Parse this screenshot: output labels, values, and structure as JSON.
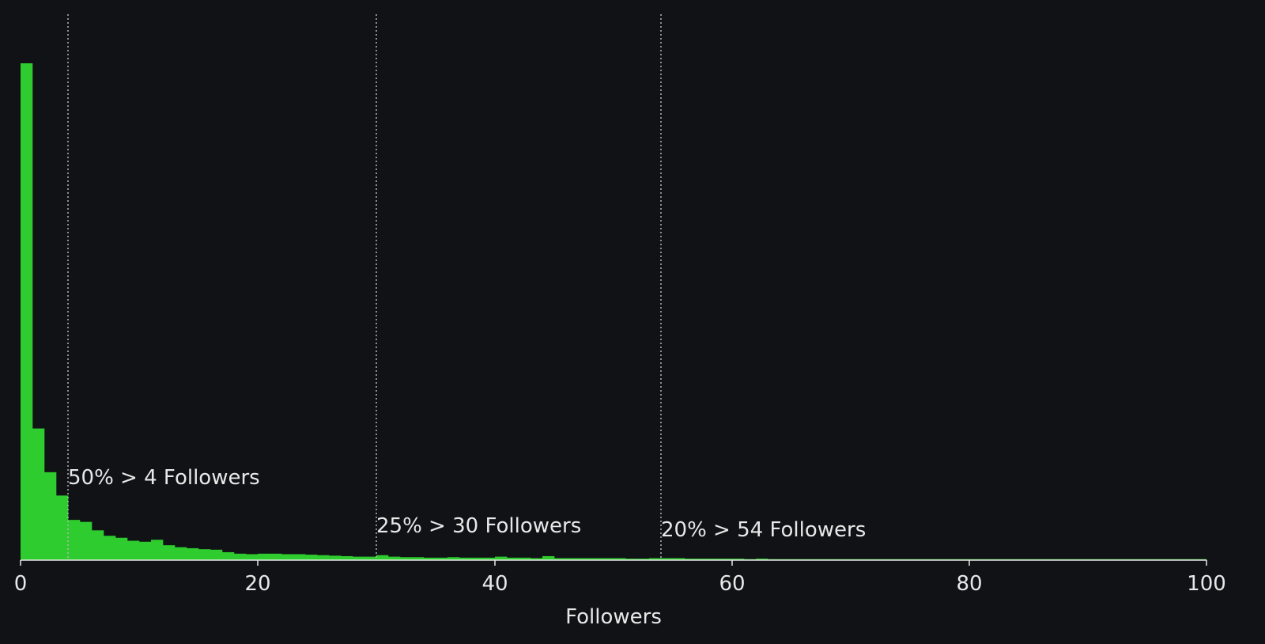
{
  "chart_data": {
    "type": "histogram",
    "xlabel": "Followers",
    "ylabel": "",
    "xlim": [
      0,
      100
    ],
    "ylim": [
      0,
      1.0
    ],
    "bar_color": "#2ecc2e",
    "background": "#111215",
    "grid": false,
    "bin_width": 1,
    "x_ticks": [
      0,
      20,
      40,
      60,
      80,
      100
    ],
    "x_tick_labels": [
      "0",
      "20",
      "40",
      "60",
      "80",
      "100"
    ],
    "values": [
      1.0,
      0.265,
      0.177,
      0.13,
      0.081,
      0.077,
      0.06,
      0.049,
      0.045,
      0.039,
      0.037,
      0.041,
      0.03,
      0.026,
      0.024,
      0.022,
      0.021,
      0.016,
      0.013,
      0.012,
      0.013,
      0.013,
      0.012,
      0.012,
      0.011,
      0.01,
      0.009,
      0.008,
      0.007,
      0.007,
      0.01,
      0.007,
      0.006,
      0.006,
      0.005,
      0.005,
      0.006,
      0.005,
      0.005,
      0.005,
      0.007,
      0.005,
      0.005,
      0.004,
      0.008,
      0.004,
      0.004,
      0.004,
      0.004,
      0.004,
      0.004,
      0.003,
      0.003,
      0.004,
      0.004,
      0.004,
      0.003,
      0.003,
      0.003,
      0.003,
      0.003,
      0.002,
      0.003,
      0.002,
      0.002,
      0.002,
      0.002,
      0.002,
      0.002,
      0.002,
      0.002,
      0.002,
      0.002,
      0.002,
      0.002,
      0.002,
      0.002,
      0.002,
      0.002,
      0.002,
      0.002,
      0.002,
      0.002,
      0.002,
      0.002,
      0.002,
      0.002,
      0.002,
      0.002,
      0.002,
      0.002,
      0.002,
      0.002,
      0.002,
      0.002,
      0.002,
      0.002,
      0.002,
      0.002,
      0.002
    ],
    "reference_lines": [
      {
        "x": 4,
        "label": "50% > 4 Followers"
      },
      {
        "x": 30,
        "label": "25% > 30 Followers"
      },
      {
        "x": 54,
        "label": "20% > 54 Followers"
      }
    ]
  }
}
